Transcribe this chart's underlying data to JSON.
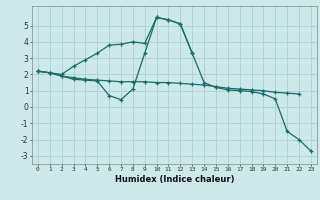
{
  "xlabel": "Humidex (Indice chaleur)",
  "background_color": "#cde8e8",
  "grid_color": "#aacfcf",
  "line_color": "#1a6b6b",
  "xlim": [
    -0.5,
    23.5
  ],
  "ylim": [
    -3.5,
    6.2
  ],
  "yticks": [
    -3,
    -2,
    -1,
    0,
    1,
    2,
    3,
    4,
    5
  ],
  "xticks": [
    0,
    1,
    2,
    3,
    4,
    5,
    6,
    7,
    8,
    9,
    10,
    11,
    12,
    13,
    14,
    15,
    16,
    17,
    18,
    19,
    20,
    21,
    22,
    23
  ],
  "line1_x": [
    0,
    1,
    2,
    3,
    4,
    5,
    6,
    7,
    8,
    9,
    10,
    11,
    12,
    13,
    14,
    15,
    16,
    17,
    18,
    19,
    20,
    21,
    22
  ],
  "line1_y": [
    2.2,
    2.1,
    1.9,
    1.8,
    1.7,
    1.65,
    1.6,
    1.55,
    1.55,
    1.55,
    1.5,
    1.5,
    1.45,
    1.4,
    1.35,
    1.25,
    1.15,
    1.1,
    1.05,
    1.0,
    0.9,
    0.85,
    0.8
  ],
  "line2_x": [
    0,
    1,
    2,
    3,
    4,
    5,
    6,
    7,
    8,
    9,
    10,
    11,
    12,
    13,
    14,
    15,
    16,
    17,
    18,
    19,
    20,
    21,
    22,
    23
  ],
  "line2_y": [
    2.2,
    2.1,
    1.9,
    1.7,
    1.65,
    1.6,
    0.7,
    0.45,
    1.1,
    3.3,
    5.5,
    5.35,
    5.1,
    3.3,
    1.5,
    1.2,
    1.05,
    1.0,
    0.95,
    0.8,
    0.5,
    -1.5,
    -2.0,
    -2.7
  ],
  "line3_x": [
    0,
    1,
    2,
    3,
    4,
    5,
    6,
    7,
    8,
    9,
    10,
    11,
    12,
    13
  ],
  "line3_y": [
    2.2,
    2.1,
    2.0,
    2.5,
    2.9,
    3.3,
    3.8,
    3.85,
    4.0,
    3.9,
    5.5,
    5.35,
    5.1,
    3.3
  ]
}
